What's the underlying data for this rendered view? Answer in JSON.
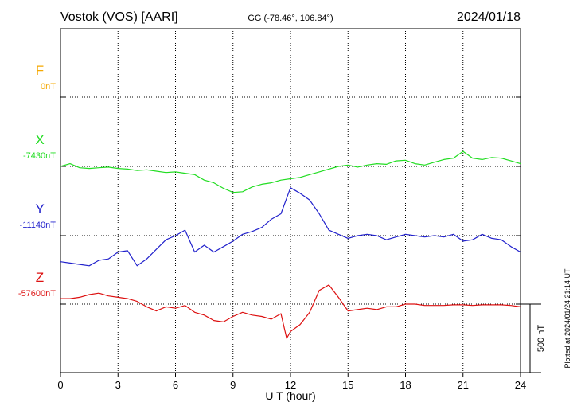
{
  "header": {
    "station": "Vostok (VOS)  [AARI]",
    "coords": "GG (-78.46°, 106.84°)",
    "date": "2024/01/18"
  },
  "side_note": "Plotted at 2024/01/24 21:14 UT",
  "chart_data": {
    "type": "line",
    "xlabel": "U T (hour)",
    "xlim": [
      0,
      24
    ],
    "xticks": [
      "0",
      "3",
      "6",
      "9",
      "12",
      "15",
      "18",
      "21",
      "24"
    ],
    "scale_bar": {
      "label": "500 nT",
      "value_nT": 500
    },
    "components": [
      {
        "key": "F",
        "color": "#f5a800",
        "baseline": "0nT",
        "x": [],
        "y": []
      },
      {
        "key": "X",
        "color": "#22dd22",
        "baseline": "-7430nT",
        "x": [
          0,
          0.5,
          1,
          1.5,
          2,
          2.5,
          3,
          3.5,
          4,
          4.5,
          5,
          5.5,
          6,
          6.5,
          7,
          7.5,
          8,
          8.5,
          9,
          9.5,
          10,
          10.5,
          11,
          11.5,
          12,
          12.5,
          13,
          13.5,
          14,
          14.5,
          15,
          15.5,
          16,
          16.5,
          17,
          17.5,
          18,
          18.5,
          19,
          19.5,
          20,
          20.5,
          21,
          21.5,
          22,
          22.5,
          23,
          23.5,
          24
        ],
        "y": [
          0,
          20,
          -10,
          -15,
          -10,
          -5,
          -15,
          -20,
          -30,
          -25,
          -35,
          -45,
          -40,
          -50,
          -60,
          -100,
          -120,
          -160,
          -190,
          -185,
          -150,
          -130,
          -120,
          -100,
          -90,
          -80,
          -60,
          -40,
          -20,
          0,
          10,
          -5,
          10,
          20,
          15,
          40,
          45,
          20,
          10,
          30,
          50,
          60,
          110,
          60,
          50,
          65,
          60,
          40,
          20
        ]
      },
      {
        "key": "Y",
        "color": "#2222cc",
        "baseline": "-11140nT",
        "x": [
          0,
          0.5,
          1,
          1.5,
          2,
          2.5,
          3,
          3.5,
          4,
          4.5,
          5,
          5.5,
          6,
          6.5,
          7,
          7.5,
          8,
          8.5,
          9,
          9.5,
          10,
          10.5,
          11,
          11.5,
          12,
          12.5,
          13,
          13.5,
          14,
          14.5,
          15,
          15.5,
          16,
          16.5,
          17,
          17.5,
          18,
          18.5,
          19,
          19.5,
          20,
          20.5,
          21,
          21.5,
          22,
          22.5,
          23,
          23.5,
          24
        ],
        "y": [
          -190,
          -200,
          -210,
          -220,
          -180,
          -170,
          -120,
          -110,
          -220,
          -170,
          -100,
          -30,
          0,
          40,
          -120,
          -70,
          -120,
          -80,
          -40,
          10,
          30,
          60,
          120,
          160,
          350,
          310,
          260,
          160,
          40,
          10,
          -20,
          0,
          10,
          0,
          -30,
          -10,
          10,
          0,
          -10,
          0,
          -10,
          10,
          -40,
          -30,
          10,
          -20,
          -30,
          -80,
          -120
        ]
      },
      {
        "key": "Z",
        "color": "#dd1111",
        "baseline": "-57600nT",
        "x": [
          0,
          0.5,
          1,
          1.5,
          2,
          2.5,
          3,
          3.5,
          4,
          4.5,
          5,
          5.5,
          6,
          6.5,
          7,
          7.5,
          8,
          8.5,
          9,
          9.5,
          10,
          10.5,
          11,
          11.5,
          11.8,
          12,
          12.5,
          13,
          13.5,
          14,
          14.5,
          15,
          15.5,
          16,
          16.5,
          17,
          17.5,
          18,
          18.5,
          19,
          19.5,
          20,
          20.5,
          21,
          21.5,
          22,
          22.5,
          23,
          23.5,
          24
        ],
        "y": [
          40,
          40,
          50,
          70,
          80,
          60,
          50,
          40,
          20,
          -20,
          -50,
          -20,
          -30,
          -10,
          -60,
          -80,
          -120,
          -130,
          -90,
          -60,
          -80,
          -90,
          -110,
          -70,
          -250,
          -200,
          -150,
          -60,
          100,
          140,
          50,
          -50,
          -40,
          -30,
          -40,
          -20,
          -20,
          0,
          0,
          -10,
          -10,
          -10,
          -5,
          -5,
          -10,
          -5,
          -5,
          -5,
          -10,
          -20
        ]
      }
    ]
  }
}
